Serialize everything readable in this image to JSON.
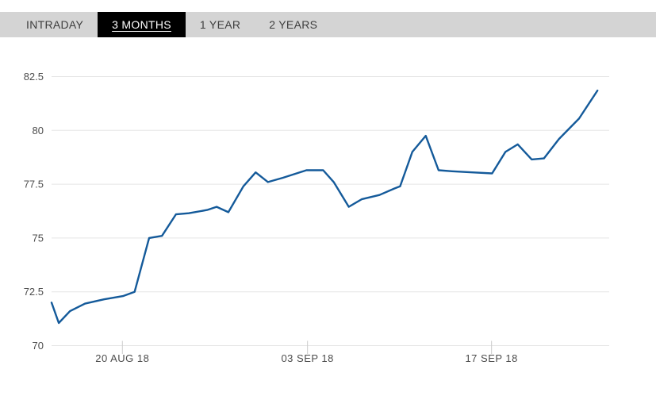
{
  "tabs": {
    "items": [
      {
        "label": "INTRADAY",
        "active": false
      },
      {
        "label": "3 MONTHS",
        "active": true
      },
      {
        "label": "1 YEAR",
        "active": false
      },
      {
        "label": "2 YEARS",
        "active": false
      }
    ]
  },
  "colors": {
    "tab_bar_bg": "#d4d4d4",
    "active_tab_bg": "#000000",
    "active_tab_text": "#ffffff",
    "tab_text": "#3d3d3d",
    "grid": "#e5e5e5",
    "tick": "#cccccc",
    "axis_text": "#4d4d4d",
    "line": "#145a9a"
  },
  "chart_data": {
    "type": "line",
    "title": "",
    "xlabel": "",
    "ylabel": "",
    "ylim": [
      70,
      82.5
    ],
    "grid": "horizontal-only",
    "legend": "none",
    "y_ticks": [
      {
        "value": 82.5,
        "label": "82.5"
      },
      {
        "value": 80,
        "label": "80"
      },
      {
        "value": 77.5,
        "label": "77.5"
      },
      {
        "value": 75,
        "label": "75"
      },
      {
        "value": 72.5,
        "label": "72.5"
      },
      {
        "value": 70,
        "label": "70"
      }
    ],
    "x_ticks": [
      {
        "pos_percent": 12.7,
        "label": "20 AUG 18"
      },
      {
        "pos_percent": 45.9,
        "label": "03 SEP 18"
      },
      {
        "pos_percent": 78.9,
        "label": "17 SEP 18"
      }
    ],
    "series": [
      {
        "name": "price",
        "color": "#145a9a",
        "points": [
          [
            0.0,
            72.0
          ],
          [
            1.3,
            71.05
          ],
          [
            3.3,
            71.6
          ],
          [
            6.0,
            71.95
          ],
          [
            9.4,
            72.15
          ],
          [
            12.8,
            72.3
          ],
          [
            14.9,
            72.5
          ],
          [
            17.5,
            75.0
          ],
          [
            19.8,
            75.1
          ],
          [
            22.3,
            76.1
          ],
          [
            24.6,
            76.15
          ],
          [
            27.9,
            76.3
          ],
          [
            29.6,
            76.45
          ],
          [
            31.7,
            76.2
          ],
          [
            34.4,
            77.4
          ],
          [
            36.6,
            78.05
          ],
          [
            38.8,
            77.6
          ],
          [
            41.5,
            77.8
          ],
          [
            45.7,
            78.15
          ],
          [
            48.7,
            78.15
          ],
          [
            50.6,
            77.6
          ],
          [
            53.3,
            76.45
          ],
          [
            55.6,
            76.8
          ],
          [
            58.8,
            77.0
          ],
          [
            61.5,
            77.3
          ],
          [
            62.5,
            77.4
          ],
          [
            64.7,
            79.0
          ],
          [
            67.1,
            79.75
          ],
          [
            69.4,
            78.15
          ],
          [
            71.8,
            78.1
          ],
          [
            75.4,
            78.05
          ],
          [
            79.0,
            78.0
          ],
          [
            81.4,
            79.0
          ],
          [
            83.6,
            79.35
          ],
          [
            86.1,
            78.65
          ],
          [
            88.3,
            78.7
          ],
          [
            91.0,
            79.6
          ],
          [
            94.6,
            80.55
          ],
          [
            97.9,
            81.85
          ]
        ]
      }
    ]
  }
}
